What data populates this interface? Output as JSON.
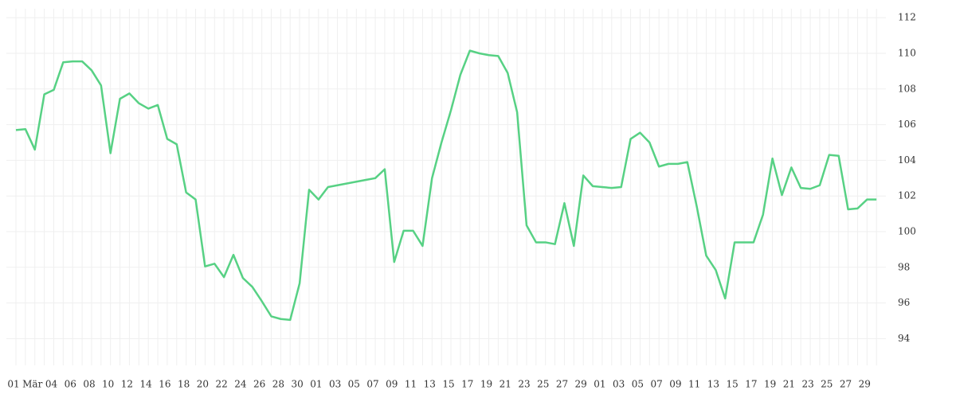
{
  "chart_data": {
    "type": "line",
    "categories": [
      "01",
      null,
      "Mär",
      null,
      "04",
      null,
      "06",
      null,
      "08",
      null,
      "10",
      null,
      "12",
      null,
      "14",
      null,
      "16",
      null,
      "18",
      null,
      "20",
      null,
      "22",
      null,
      "24",
      null,
      "26",
      null,
      "28",
      null,
      "30",
      null,
      "01",
      null,
      "03",
      null,
      "05",
      null,
      "07",
      null,
      "09",
      null,
      "11",
      null,
      "13",
      null,
      "15",
      null,
      "17",
      null,
      "19",
      null,
      "21",
      null,
      "23",
      null,
      "25",
      null,
      "27",
      null,
      "29",
      null,
      "01",
      null,
      "03",
      null,
      "05",
      null,
      "07",
      null,
      "09",
      null,
      "11",
      null,
      "13",
      null,
      "15",
      null,
      "17",
      null,
      "19",
      null,
      "21",
      null,
      "23",
      null,
      "25",
      null,
      "27",
      null,
      "29",
      null
    ],
    "values": [
      105.7,
      105.75,
      104.6,
      107.7,
      107.95,
      109.5,
      109.55,
      109.55,
      109.05,
      108.2,
      104.4,
      107.45,
      107.75,
      107.2,
      106.9,
      107.1,
      105.2,
      104.9,
      102.2,
      101.8,
      98.05,
      98.2,
      97.45,
      98.7,
      97.4,
      96.9,
      96.1,
      95.25,
      95.1,
      95.05,
      97.1,
      102.35,
      101.8,
      102.5,
      102.6,
      102.7,
      102.8,
      102.9,
      103.0,
      103.5,
      98.3,
      100.05,
      100.05,
      99.2,
      103.0,
      105.0,
      106.8,
      108.8,
      110.15,
      110.0,
      109.9,
      109.85,
      108.9,
      106.7,
      100.35,
      99.4,
      99.4,
      99.3,
      101.6,
      99.2,
      103.15,
      102.55,
      102.5,
      102.45,
      102.5,
      105.2,
      105.55,
      105.0,
      103.65,
      103.8,
      103.8,
      103.9,
      101.4,
      98.65,
      97.85,
      96.25,
      99.4,
      99.4,
      99.4,
      100.95,
      104.1,
      102.05,
      103.6,
      102.45,
      102.4,
      102.6,
      104.3,
      104.25,
      101.25,
      101.3,
      101.8,
      101.8
    ],
    "color": "#57d184",
    "ylim": [
      92.5,
      112.5
    ],
    "yticks": [
      94,
      96,
      98,
      100,
      102,
      104,
      106,
      108,
      110,
      112
    ],
    "grid": true
  }
}
